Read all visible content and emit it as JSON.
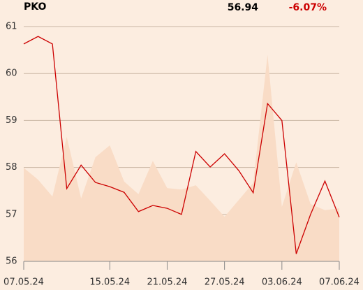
{
  "chart_data": {
    "type": "line",
    "title": "PKO",
    "last_price": "56.94",
    "change": "-6.07%",
    "categories": [
      "07.05.24",
      null,
      null,
      null,
      null,
      null,
      "15.05.24",
      null,
      null,
      null,
      "21.05.24",
      null,
      null,
      null,
      "27.05.24",
      null,
      null,
      null,
      "03.06.24",
      null,
      null,
      null,
      "07.06.24"
    ],
    "series": [
      {
        "kind": "line",
        "color": "#cc0000",
        "values": [
          60.63,
          60.79,
          60.63,
          57.55,
          58.05,
          57.68,
          57.59,
          57.47,
          57.06,
          57.19,
          57.13,
          57.0,
          58.34,
          58.01,
          58.29,
          57.93,
          57.46,
          59.36,
          59.0,
          56.16,
          57.0,
          57.71,
          56.94
        ]
      },
      {
        "kind": "area",
        "color": "#f9dcc6",
        "values": [
          57.99,
          57.74,
          57.38,
          58.65,
          57.34,
          58.22,
          58.47,
          57.7,
          57.43,
          58.14,
          57.56,
          57.53,
          57.62,
          57.29,
          56.95,
          57.31,
          57.67,
          60.4,
          57.16,
          58.11,
          57.22,
          57.09,
          57.13
        ]
      }
    ],
    "ylim": [
      56,
      61
    ],
    "yticks": [
      56,
      57,
      58,
      59,
      60,
      61
    ],
    "grid": true
  }
}
